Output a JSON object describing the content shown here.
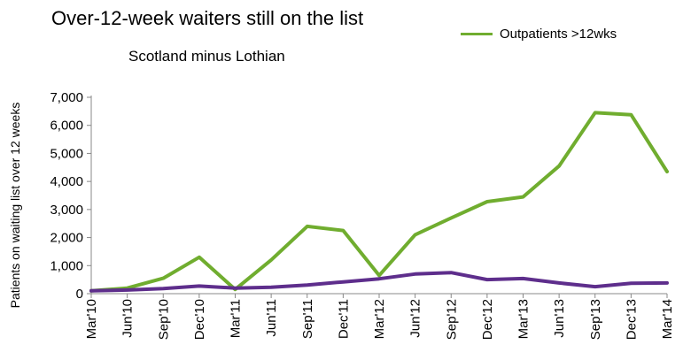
{
  "chart_data": {
    "type": "line",
    "title": "Over-12-week waiters still on the list",
    "subtitle": "Scotland minus Lothian",
    "ylabel": "Patients on waiting list over 12 weeks",
    "xlabel": "",
    "ylim": [
      0,
      7000
    ],
    "yticks": [
      0,
      1000,
      2000,
      3000,
      4000,
      5000,
      6000,
      7000
    ],
    "ytick_labels": [
      "0",
      "1,000",
      "2,000",
      "3,000",
      "4,000",
      "5,000",
      "6,000",
      "7,000"
    ],
    "grid": false,
    "legend_position": "top-right",
    "categories": [
      "Mar'10",
      "Jun'10",
      "Sep'10",
      "Dec'10",
      "Mar'11",
      "Jun'11",
      "Sep'11",
      "Dec'11",
      "Mar'12",
      "Jun'12",
      "Sep'12",
      "Dec'12",
      "Mar'13",
      "Jun'13",
      "Sep'13",
      "Dec'13",
      "Mar'14"
    ],
    "series": [
      {
        "name": "Outpatients >12wks",
        "color": "#70AD2F",
        "values": [
          100,
          200,
          550,
          1300,
          150,
          1200,
          2400,
          2250,
          650,
          2100,
          2700,
          3280,
          3450,
          4550,
          6450,
          6380,
          4350
        ]
      },
      {
        "name": "",
        "color": "#5E2E8C",
        "values": [
          100,
          130,
          180,
          270,
          200,
          230,
          310,
          420,
          530,
          700,
          750,
          500,
          540,
          380,
          250,
          370,
          380
        ]
      }
    ]
  }
}
